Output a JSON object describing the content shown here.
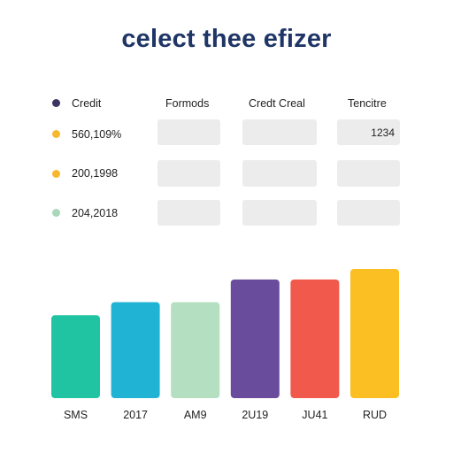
{
  "title": "celect thee efizer",
  "table": {
    "headers": [
      "Credit",
      "Formods",
      "Credt Creal",
      "Tencitre"
    ],
    "header_dot_color": "#3b3561",
    "rows": [
      {
        "label": "560,109%",
        "dot_color": "#f5b82e",
        "last_value": "1234"
      },
      {
        "label": "200,1998",
        "dot_color": "#f5b82e",
        "last_value": ""
      },
      {
        "label": "204,2018",
        "dot_color": "#a8d8b9",
        "last_value": ""
      }
    ]
  },
  "chart_data": {
    "type": "bar",
    "categories": [
      "SMS",
      "2017",
      "AM9",
      "2U19",
      "JU41",
      "RUD"
    ],
    "values": [
      95,
      110,
      110,
      136,
      136,
      148
    ],
    "colors": [
      "#20c4a2",
      "#20b3d3",
      "#b4dfc0",
      "#6a4c9c",
      "#f0594c",
      "#fbbf24"
    ],
    "ylim": [
      0,
      150
    ],
    "grid": false,
    "title": "",
    "xlabel": "",
    "ylabel": ""
  }
}
